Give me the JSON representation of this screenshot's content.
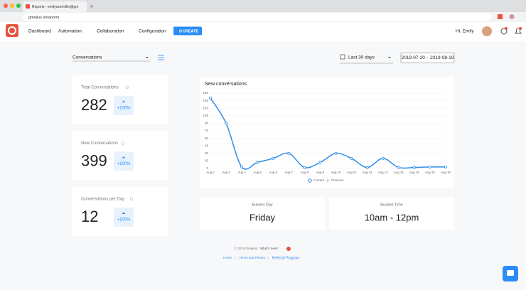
{
  "browser": {
    "tab_title": "Reports - emilyszemiller@gm",
    "url": "gmelius.io/reports"
  },
  "nav": {
    "items": [
      "Dashboard",
      "Automation",
      "Collaboration",
      "Configuration"
    ],
    "create": "CREATE",
    "greeting": "Hi, Emily"
  },
  "filters": {
    "metric": "Conversations",
    "period": "Last 30 days",
    "date_range": "2019-07-20 – 2019-08-19"
  },
  "stats": [
    {
      "label": "Total Conversations",
      "value": "282",
      "change": "+100%"
    },
    {
      "label": "New Conversations",
      "value": "399",
      "change": "+100%"
    },
    {
      "label": "Conversations per Day",
      "value": "12",
      "change": "+100%"
    }
  ],
  "chart_data": {
    "type": "line",
    "title": "New conversations",
    "categories": [
      "Aug 2",
      "Aug 3",
      "Aug 4",
      "Aug 5",
      "Aug 6",
      "Aug 7",
      "Aug 8",
      "Aug 9",
      "Aug 10",
      "Aug 11",
      "Aug 12",
      "Aug 13",
      "Aug 14",
      "Aug 15",
      "Aug 16",
      "Aug 18"
    ],
    "series": [
      {
        "name": "Current",
        "color": "#2d8ee8",
        "values": [
          140,
          90,
          3,
          12,
          20,
          30,
          2,
          12,
          30,
          20,
          2,
          20,
          2,
          2,
          3,
          3
        ]
      }
    ],
    "legend_extra": {
      "name": "Previous",
      "color": "#d8dbe0"
    },
    "ylim": [
      0,
      150
    ],
    "yticks": [
      0,
      15,
      30,
      45,
      60,
      75,
      90,
      105,
      120,
      135,
      150
    ],
    "grid": true
  },
  "highlights": [
    {
      "label": "Busiest Day",
      "value": "Friday"
    },
    {
      "label": "Busiest Time",
      "value": "10am - 12pm"
    }
  ],
  "footer": {
    "copyright": "© 2019 Gmelius",
    "whats_new": "What's new?",
    "links": [
      "Home",
      "Terms and Privacy",
      "Referral Program"
    ]
  }
}
